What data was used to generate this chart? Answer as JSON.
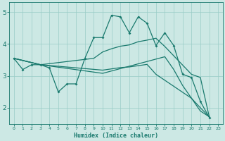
{
  "bg_color": "#cce8e4",
  "grid_color": "#99ccc6",
  "line_color": "#1a7a6e",
  "xlabel": "Humidex (Indice chaleur)",
  "ylim": [
    1.5,
    5.3
  ],
  "xlim": [
    -0.5,
    23.5
  ],
  "yticks": [
    2,
    3,
    4,
    5
  ],
  "xticks": [
    0,
    1,
    2,
    3,
    4,
    5,
    6,
    7,
    8,
    9,
    10,
    11,
    12,
    13,
    14,
    15,
    16,
    17,
    18,
    19,
    20,
    21,
    22,
    23
  ],
  "figsize": [
    3.2,
    2.0
  ],
  "dpi": 100,
  "line1_x": [
    0,
    1,
    2,
    3,
    4,
    5,
    6,
    7,
    8,
    9,
    10,
    11,
    12,
    13,
    14,
    15,
    16,
    17,
    18,
    19,
    20,
    21,
    22
  ],
  "line1_y": [
    3.55,
    3.2,
    3.35,
    3.35,
    3.25,
    2.5,
    2.75,
    2.75,
    3.55,
    4.2,
    4.2,
    4.9,
    4.85,
    4.35,
    4.85,
    4.65,
    3.95,
    4.35,
    3.95,
    3.05,
    2.95,
    2.2,
    1.7
  ],
  "line2_x": [
    0,
    3,
    9,
    10,
    11,
    12,
    13,
    14,
    15,
    16,
    17,
    20,
    21,
    22
  ],
  "line2_y": [
    3.55,
    3.35,
    3.55,
    3.75,
    3.85,
    3.93,
    3.97,
    4.07,
    4.12,
    4.18,
    3.92,
    3.05,
    2.95,
    1.72
  ],
  "line3_x": [
    0,
    3,
    10,
    11,
    12,
    13,
    14,
    15,
    16,
    20,
    21,
    22
  ],
  "line3_y": [
    3.55,
    3.35,
    3.18,
    3.22,
    3.26,
    3.28,
    3.32,
    3.36,
    3.05,
    2.3,
    2.0,
    1.72
  ],
  "line4_x": [
    0,
    3,
    10,
    17,
    18,
    19,
    20,
    21,
    22
  ],
  "line4_y": [
    3.55,
    3.35,
    3.08,
    3.6,
    3.2,
    2.7,
    2.3,
    1.9,
    1.72
  ]
}
